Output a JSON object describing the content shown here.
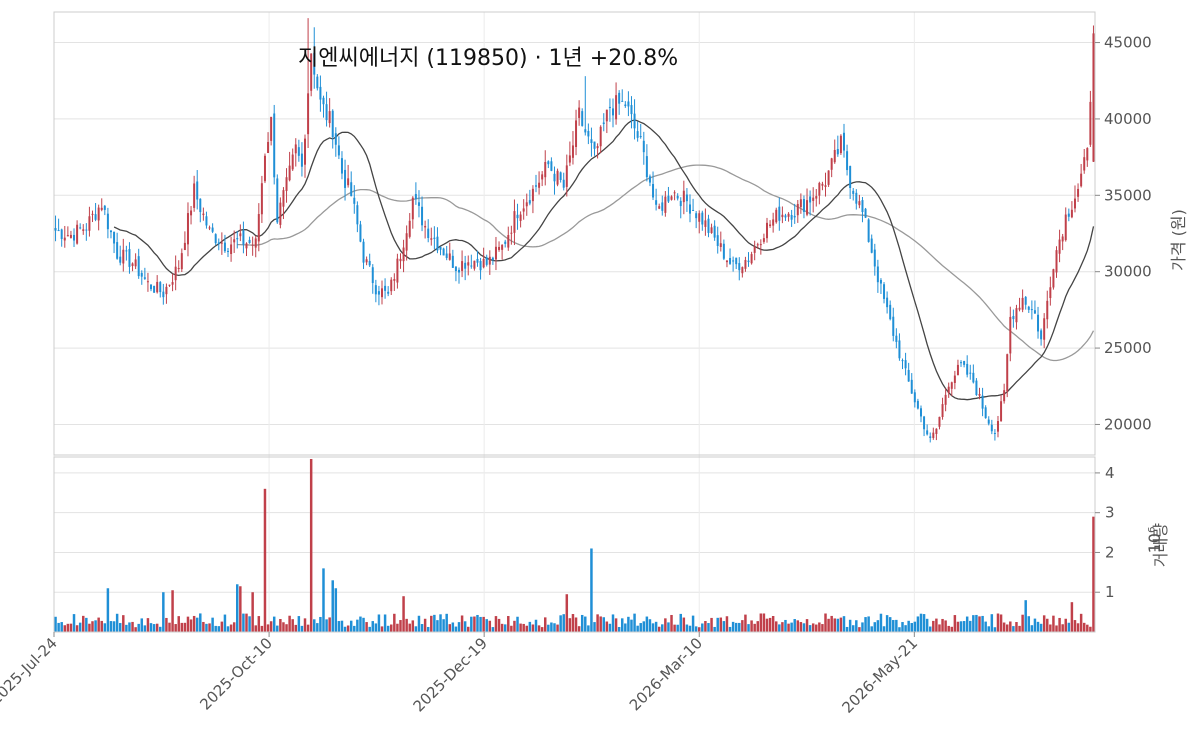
{
  "chart_data": {
    "type": "candlestick",
    "title": "지엔씨에너지 (119850)  ·  1년 +20.8%",
    "price_axis": {
      "label": "가격 (원)",
      "ticks": [
        20000,
        25000,
        30000,
        35000,
        40000,
        45000
      ],
      "range": [
        18000,
        47000
      ]
    },
    "volume_axis": {
      "label": "거래량",
      "exponent": "10⁶",
      "ticks": [
        1,
        2,
        3,
        4
      ],
      "range": [
        0,
        4.4
      ]
    },
    "x_ticks": [
      "2025-Jul-24",
      "2025-Oct-10",
      "2025-Dec-19",
      "2026-Mar-10",
      "2026-May-21"
    ],
    "grid": true,
    "price_anchors": [
      [
        0,
        32700
      ],
      [
        5,
        32400
      ],
      [
        10,
        33000
      ],
      [
        15,
        34500
      ],
      [
        20,
        31200
      ],
      [
        25,
        30600
      ],
      [
        30,
        29200
      ],
      [
        35,
        28600
      ],
      [
        40,
        30400
      ],
      [
        45,
        35300
      ],
      [
        50,
        32600
      ],
      [
        55,
        31800
      ],
      [
        60,
        32000
      ],
      [
        65,
        31800
      ],
      [
        68,
        37900
      ],
      [
        70,
        39800
      ],
      [
        72,
        33500
      ],
      [
        75,
        35600
      ],
      [
        78,
        38000
      ],
      [
        80,
        36800
      ],
      [
        83,
        44500
      ],
      [
        86,
        41000
      ],
      [
        90,
        39500
      ],
      [
        93,
        36500
      ],
      [
        96,
        35000
      ],
      [
        100,
        31000
      ],
      [
        104,
        29000
      ],
      [
        108,
        28400
      ],
      [
        112,
        31200
      ],
      [
        116,
        34800
      ],
      [
        120,
        33000
      ],
      [
        125,
        31600
      ],
      [
        130,
        30400
      ],
      [
        135,
        30800
      ],
      [
        140,
        30500
      ],
      [
        145,
        31600
      ],
      [
        150,
        34000
      ],
      [
        155,
        35300
      ],
      [
        160,
        37000
      ],
      [
        165,
        35500
      ],
      [
        170,
        40200
      ],
      [
        175,
        37500
      ],
      [
        180,
        40800
      ],
      [
        185,
        41000
      ],
      [
        190,
        38300
      ],
      [
        193,
        36000
      ],
      [
        195,
        33800
      ],
      [
        200,
        35300
      ],
      [
        205,
        34600
      ],
      [
        210,
        33400
      ],
      [
        215,
        31800
      ],
      [
        220,
        30300
      ],
      [
        225,
        30900
      ],
      [
        230,
        32700
      ],
      [
        235,
        33800
      ],
      [
        240,
        34000
      ],
      [
        245,
        34800
      ],
      [
        250,
        36000
      ],
      [
        255,
        38300
      ],
      [
        258,
        36000
      ],
      [
        262,
        33800
      ],
      [
        265,
        31400
      ],
      [
        268,
        28800
      ],
      [
        272,
        26000
      ],
      [
        276,
        23300
      ],
      [
        280,
        21000
      ],
      [
        284,
        18900
      ],
      [
        286,
        19700
      ],
      [
        290,
        22800
      ],
      [
        294,
        23800
      ],
      [
        298,
        22800
      ],
      [
        302,
        20600
      ],
      [
        305,
        19500
      ],
      [
        308,
        22000
      ],
      [
        310,
        27000
      ],
      [
        314,
        28300
      ],
      [
        318,
        27200
      ],
      [
        320,
        25500
      ],
      [
        324,
        30700
      ],
      [
        328,
        33600
      ],
      [
        332,
        35500
      ],
      [
        335,
        37600
      ],
      [
        337,
        45600
      ]
    ],
    "highlight_days": {
      "70": 40000,
      "82": 46600,
      "84": 46000,
      "172": 42800
    },
    "volume_spikes": {
      "68": 3.6,
      "83": 4.35,
      "87": 1.6,
      "64": 1.0,
      "174": 2.1,
      "166": 0.95,
      "90": 1.3,
      "91": 1.1,
      "59": 1.2,
      "60": 1.15,
      "17": 1.1,
      "35": 1.0,
      "38": 1.05,
      "113": 0.9,
      "337": 2.9,
      "315": 0.8,
      "330": 0.75
    },
    "ma_short_window": 20,
    "ma_long_window": 60,
    "colors": {
      "up": "#c0404a",
      "down": "#1f8fd6",
      "ma_short": "#444444",
      "ma_long": "#999999"
    }
  }
}
